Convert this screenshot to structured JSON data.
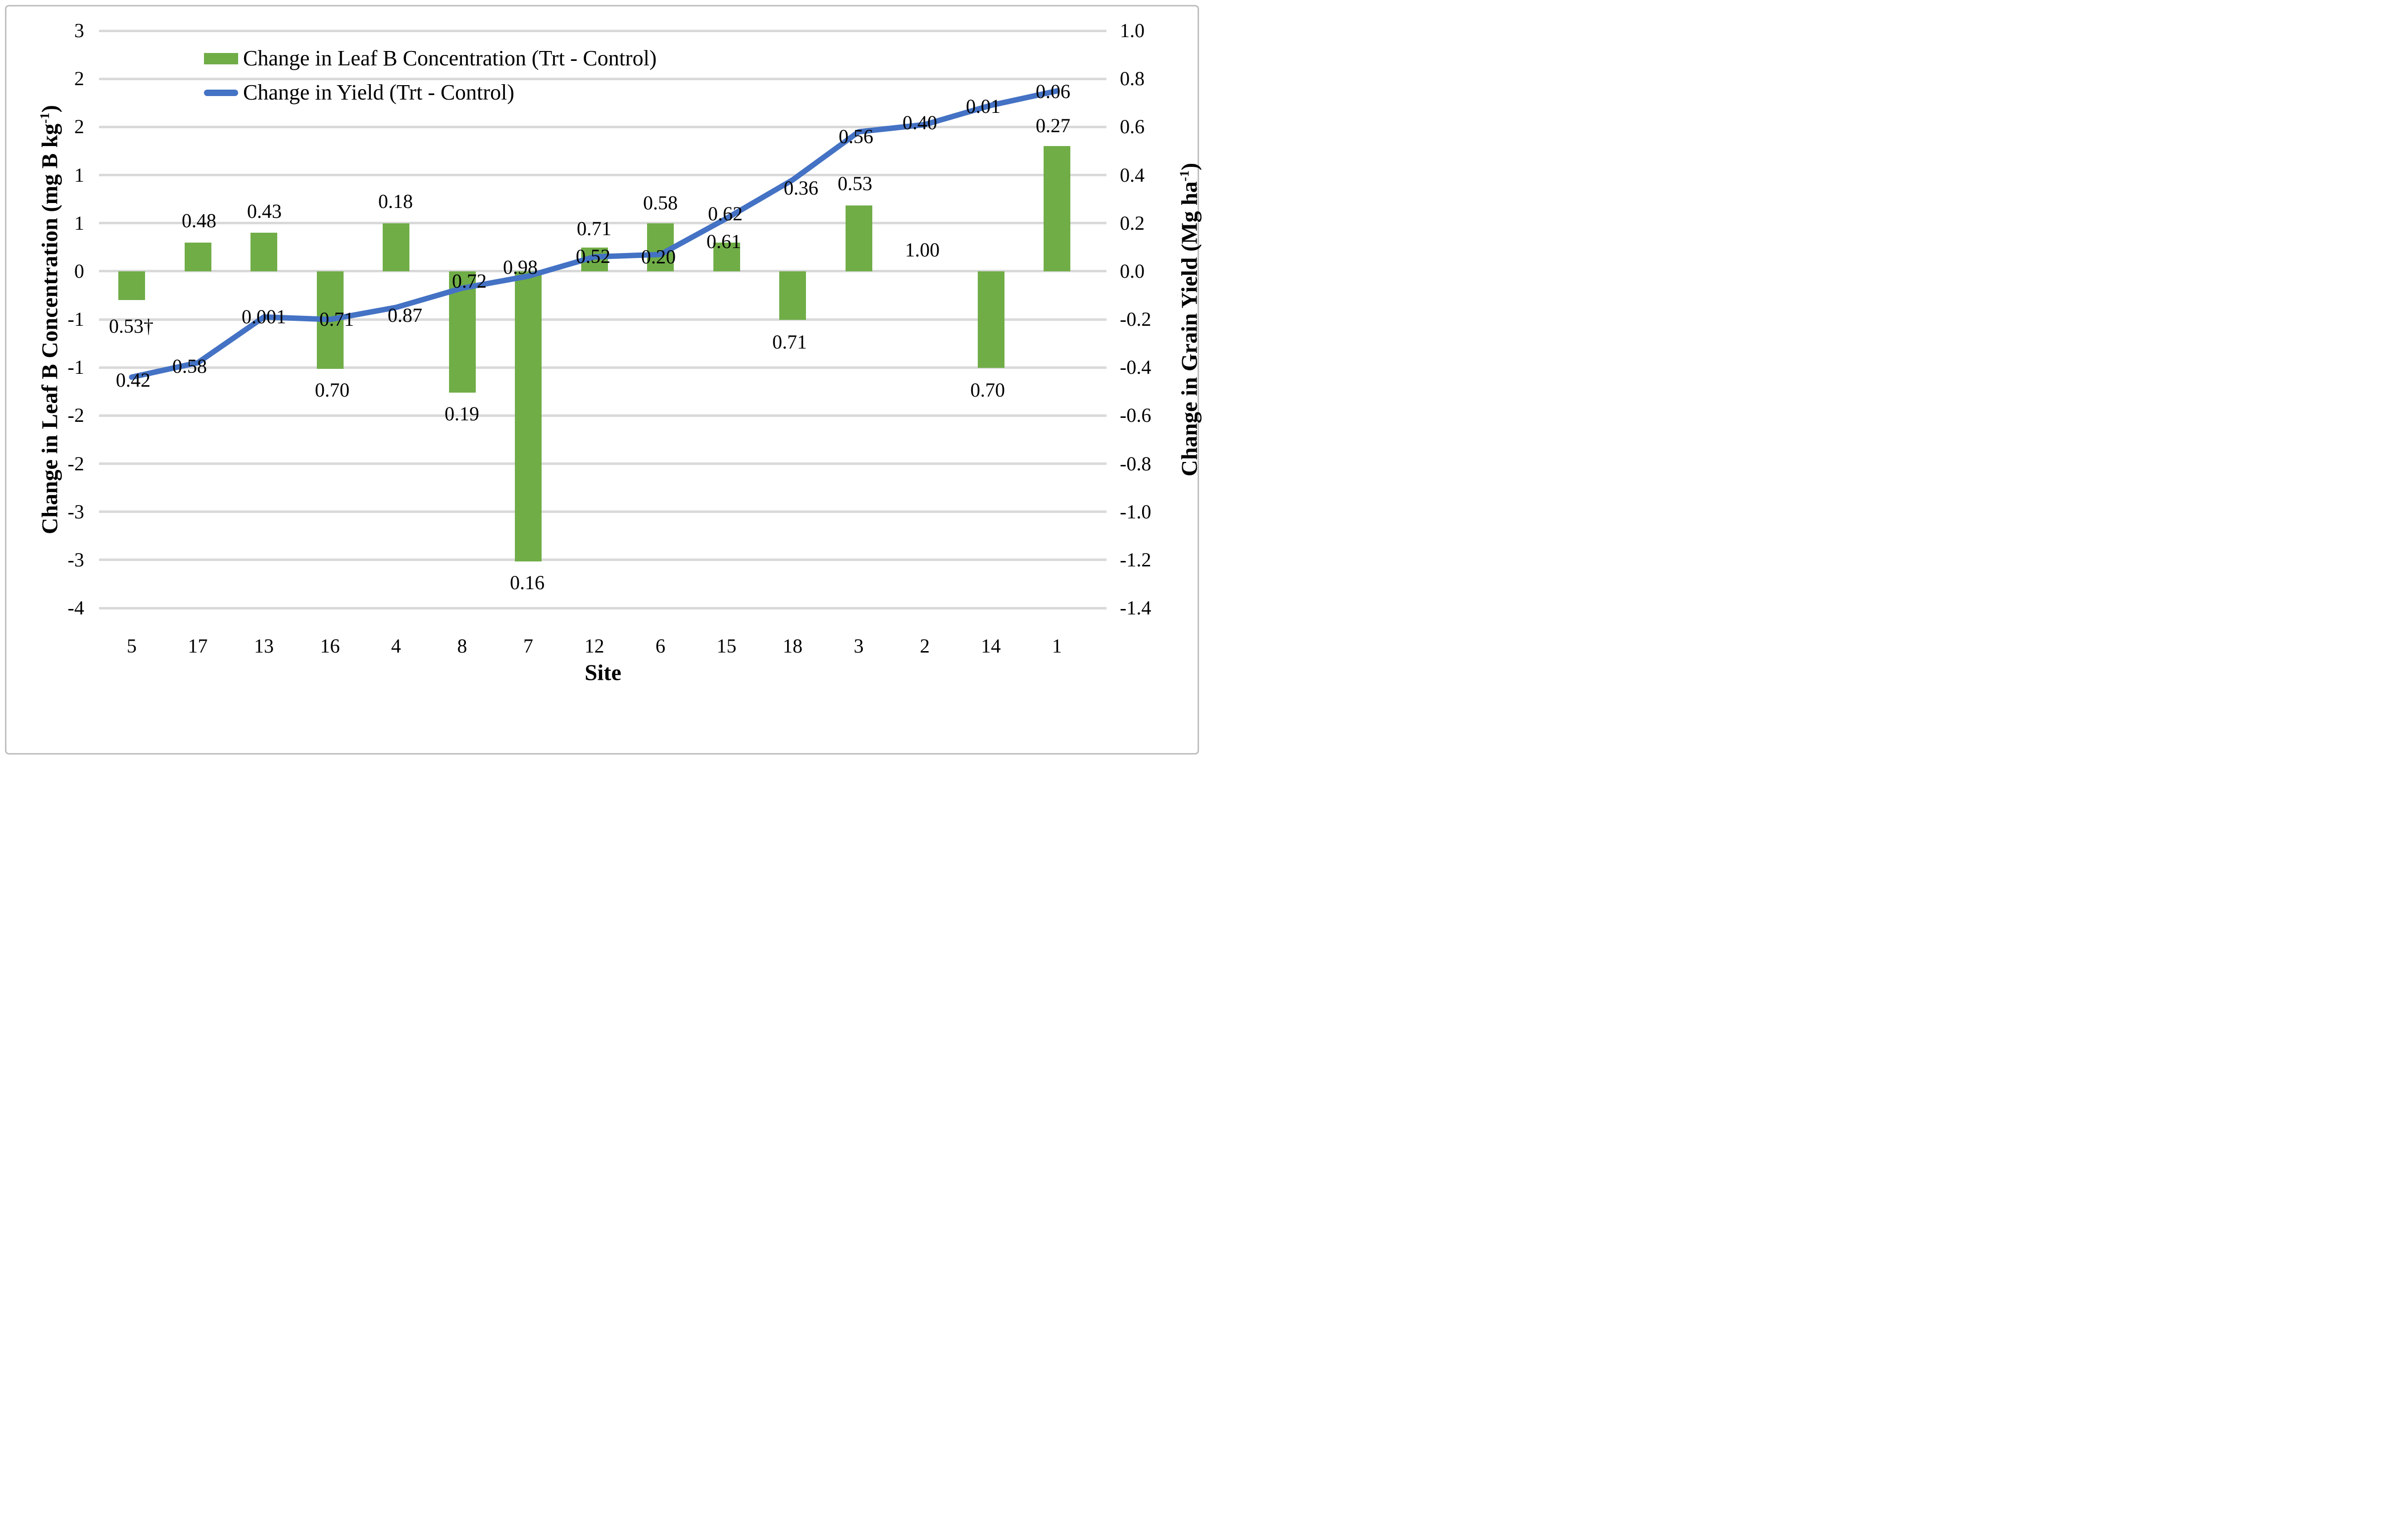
{
  "legend": {
    "position": "top-left-inside",
    "items": [
      {
        "label": "Change in Leaf B Concentration (Trt - Control)",
        "swatch": "bar",
        "color": "#70AD47"
      },
      {
        "label": "Change in Yield (Trt - Control)",
        "swatch": "line",
        "color": "#4472C4"
      }
    ]
  },
  "left_axis": {
    "title": "Change in Leaf B Concentration (mg B kg-1)",
    "title_prefix": "Change in Leaf B Concentration (mg B kg",
    "title_sup": "-1",
    "title_suffix": ")",
    "ticks": [
      "3",
      "2",
      "2",
      "1",
      "1",
      "0",
      "-1",
      "-1",
      "-2",
      "-2",
      "-3",
      "-3",
      "-4"
    ]
  },
  "right_axis": {
    "title": "Change in Grain Yield (Mg ha-1)",
    "title_prefix": "Change in Grain Yield (Mg ha",
    "title_sup": "-1",
    "title_suffix": ")",
    "ticks": [
      "1.0",
      "0.8",
      "0.6",
      "0.4",
      "0.2",
      "0.0",
      "-0.2",
      "-0.4",
      "-0.6",
      "-0.8",
      "-1.0",
      "-1.2",
      "-1.4"
    ]
  },
  "x_axis": {
    "title": "Site",
    "categories": [
      "5",
      "17",
      "13",
      "16",
      "4",
      "8",
      "7",
      "12",
      "6",
      "15",
      "18",
      "3",
      "2",
      "14",
      "1"
    ]
  },
  "chart_data": {
    "type": "combo bar+line, dual axis",
    "categories": [
      "5",
      "17",
      "13",
      "16",
      "4",
      "8",
      "7",
      "12",
      "6",
      "15",
      "18",
      "3",
      "2",
      "14",
      "1"
    ],
    "series": [
      {
        "name": "Change in Leaf B Concentration (Trt - Control)",
        "type": "bar",
        "axis": "left",
        "unit": "mg B kg-1",
        "color": "#70AD47",
        "values": [
          -0.35,
          0.35,
          0.47,
          -1.18,
          0.58,
          -1.47,
          -3.52,
          0.29,
          0.58,
          0.35,
          -0.59,
          0.8,
          0.0,
          -1.17,
          1.52
        ],
        "point_labels": [
          "0.53†",
          "0.48",
          "0.43",
          "0.70",
          "0.18",
          "0.19",
          "0.16",
          "0.71",
          "0.58",
          "0.61",
          "0.71",
          "0.53",
          "1.00",
          "0.70",
          "0.27"
        ]
      },
      {
        "name": "Change in Yield (Trt - Control)",
        "type": "line",
        "axis": "right",
        "unit": "Mg ha-1",
        "color": "#4472C4",
        "values": [
          -0.44,
          -0.38,
          -0.19,
          -0.2,
          -0.15,
          -0.07,
          -0.02,
          0.06,
          0.07,
          0.22,
          0.38,
          0.58,
          0.61,
          0.69,
          0.75
        ],
        "point_labels": [
          "0.42",
          "0.58",
          "0.001",
          "0.71",
          "0.87",
          "0.72",
          "0.98",
          "0.52",
          "0.20",
          "0.62",
          "0.36",
          "0.56",
          "0.40",
          "0.01",
          "0.06"
        ]
      }
    ],
    "left_axis_range": [
      -4,
      3
    ],
    "right_axis_range": [
      -1.4,
      1.0
    ],
    "gridline_count": 13,
    "grid_on": true,
    "legend_position": "top-left-inside",
    "colors": {
      "bar": "#70AD47",
      "line": "#4472C4",
      "gridline": "#d9d9d9",
      "text": "#000000",
      "frame": "#bfbfbf"
    },
    "bar_label_xy": [
      [
        265,
        659
      ],
      [
        402,
        446
      ],
      [
        534,
        427
      ],
      [
        671,
        788
      ],
      [
        799,
        407
      ],
      [
        933,
        836
      ],
      [
        1065,
        1177
      ],
      [
        1200,
        462
      ],
      [
        1334,
        410
      ],
      [
        1462,
        488
      ],
      [
        1595,
        691
      ],
      [
        1727,
        371
      ],
      [
        1863,
        505
      ],
      [
        1995,
        788
      ],
      [
        2127,
        254
      ]
    ],
    "line_label_xy": [
      [
        269,
        768
      ],
      [
        383,
        740
      ],
      [
        533,
        640
      ],
      [
        680,
        645
      ],
      [
        818,
        637
      ],
      [
        948,
        568
      ],
      [
        1051,
        540
      ],
      [
        1198,
        518
      ],
      [
        1330,
        519
      ],
      [
        1465,
        432
      ],
      [
        1618,
        380
      ],
      [
        1729,
        276
      ],
      [
        1858,
        248
      ],
      [
        1986,
        215
      ],
      [
        2127,
        185
      ]
    ]
  }
}
